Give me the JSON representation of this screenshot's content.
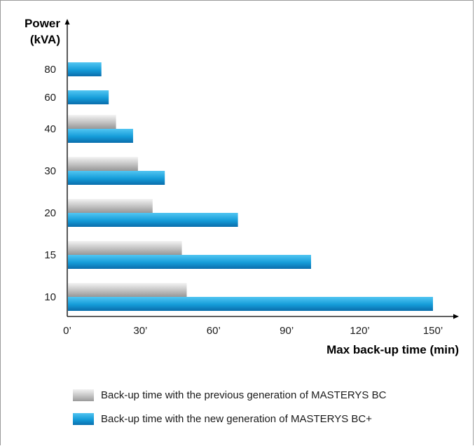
{
  "chart_data": {
    "type": "bar",
    "orientation": "horizontal",
    "ylabel_line1": "Power",
    "ylabel_line2": "(kVA)",
    "xlabel": "Max back-up time (min)",
    "categories": [
      "80",
      "60",
      "40",
      "30",
      "20",
      "15",
      "10"
    ],
    "xlim": [
      0,
      150
    ],
    "xticks": [
      {
        "value": 0,
        "label": "0’"
      },
      {
        "value": 30,
        "label": "30’"
      },
      {
        "value": 60,
        "label": "60’"
      },
      {
        "value": 90,
        "label": "90’"
      },
      {
        "value": 120,
        "label": "120’"
      },
      {
        "value": 150,
        "label": "150’"
      }
    ],
    "series": [
      {
        "name": "Back-up time with the previous generation of MASTERYS BC",
        "color": "#b4b4b4",
        "values": [
          null,
          null,
          20,
          29,
          35,
          47,
          49
        ]
      },
      {
        "name": "Back-up time with the new generation of MASTERYS BC+",
        "color": "#1aa0dc",
        "values": [
          14,
          17,
          27,
          40,
          70,
          100,
          150
        ]
      }
    ],
    "grid": false,
    "legend_position": "bottom"
  }
}
